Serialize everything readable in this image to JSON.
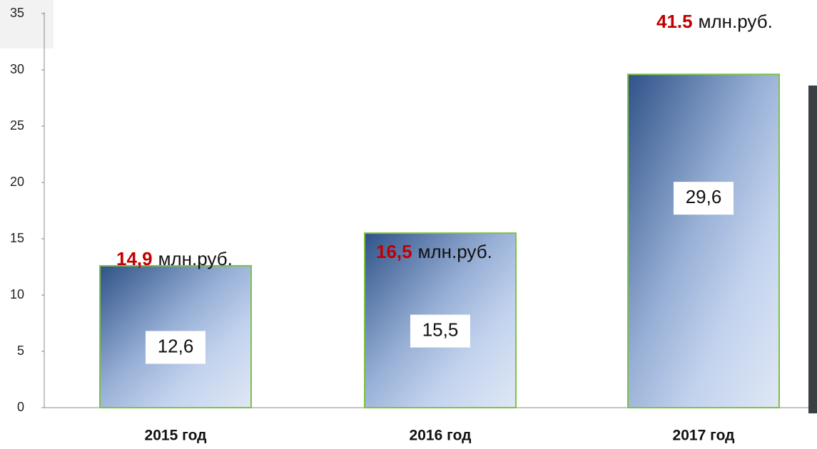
{
  "chart_data": {
    "type": "bar",
    "categories": [
      "2015 год",
      "2016 год",
      "2017 год"
    ],
    "values": [
      12.6,
      15.5,
      29.6
    ],
    "value_labels": [
      "12,6",
      "15,5",
      "29,6"
    ],
    "annotations": [
      {
        "amount": "14,9",
        "text": "млн.руб."
      },
      {
        "amount": "16,5",
        "text": "млн.руб."
      },
      {
        "amount": "41.5",
        "text": "млн.руб."
      }
    ],
    "color": "#7dc242",
    "ylim": [
      0,
      35
    ],
    "yticks": [
      0,
      5,
      10,
      15,
      20,
      25,
      30,
      35
    ],
    "grid": false
  }
}
